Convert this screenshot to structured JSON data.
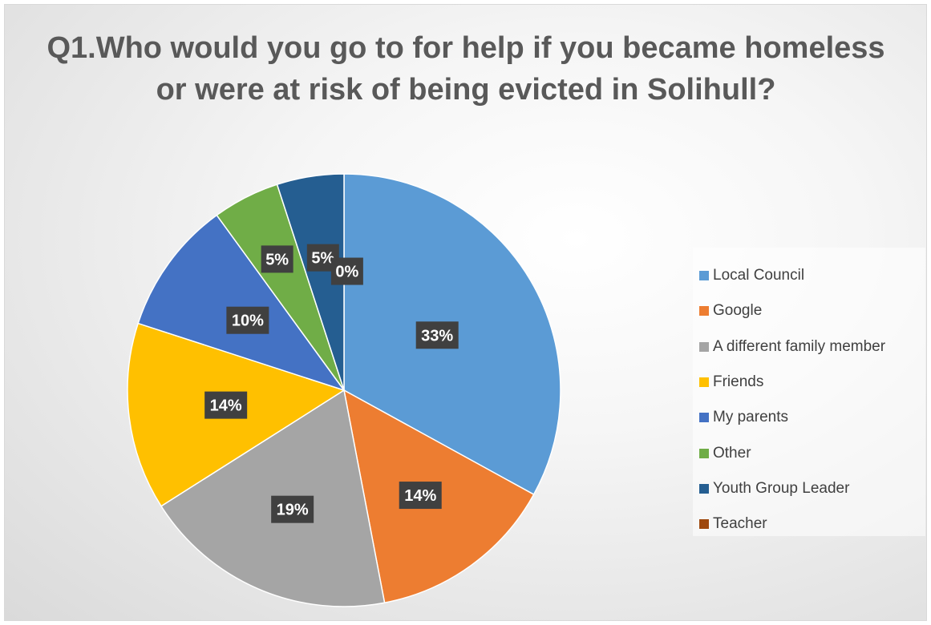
{
  "chart_data": {
    "type": "pie",
    "title": "Q1.Who would you go to for help if you became homeless or were at risk of being evicted in Solihull?",
    "slices": [
      {
        "label": "Local Council",
        "value": 33,
        "display": "33%",
        "color": "#5B9BD5"
      },
      {
        "label": "Google",
        "value": 14,
        "display": "14%",
        "color": "#ED7D31"
      },
      {
        "label": "A different family member",
        "value": 19,
        "display": "19%",
        "color": "#A5A5A5"
      },
      {
        "label": "Friends",
        "value": 14,
        "display": "14%",
        "color": "#FFC000"
      },
      {
        "label": "My parents",
        "value": 10,
        "display": "10%",
        "color": "#4472C4"
      },
      {
        "label": "Other",
        "value": 5,
        "display": "5%",
        "color": "#70AD47"
      },
      {
        "label": "Youth Group Leader",
        "value": 5,
        "display": "5%",
        "color": "#255E91"
      },
      {
        "label": "Teacher",
        "value": 0,
        "display": "0%",
        "color": "#9E480E"
      }
    ],
    "legend_position": "right",
    "data_label_bg": "#404040",
    "data_label_color": "#ffffff"
  }
}
